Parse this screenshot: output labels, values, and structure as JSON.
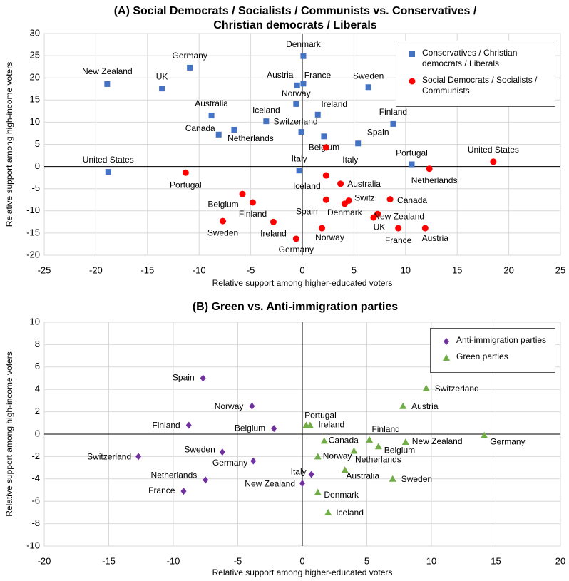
{
  "chart_data": [
    {
      "type": "scatter",
      "title": [
        "(A)  Social Democrats / Socialists / Communists vs. Conservatives /",
        "Christian democrats / Liberals"
      ],
      "x_label": "Relative support among higher-educated voters",
      "y_label": "Relative support among high-income voters",
      "xlim": [
        -25,
        25
      ],
      "xticks": [
        -25,
        -20,
        -15,
        -10,
        -5,
        0,
        5,
        10,
        15,
        20,
        25
      ],
      "ylim": [
        -20,
        30
      ],
      "yticks": [
        -20,
        -15,
        -10,
        -5,
        0,
        5,
        10,
        15,
        20,
        25,
        30
      ],
      "grid": true,
      "legend": "upper right",
      "series": [
        {
          "name": "Conservatives / Christian democrats / Liberals",
          "color": "#4472c4",
          "marker": "square",
          "labels": [
            "New Zealand",
            "UK",
            "Germany",
            "Australia",
            "Canada",
            "Netherlands",
            "Iceland",
            "Norway",
            "Austria",
            "Denmark",
            "France",
            "Switzerland",
            "Ireland",
            "Belgium",
            "Spain",
            "Sweden",
            "Finland",
            "Portugal",
            "Italy",
            "United States"
          ],
          "x": [
            -18.9,
            -13.6,
            -10.9,
            -8.8,
            -8.1,
            -6.6,
            -3.5,
            -0.6,
            -0.5,
            0.1,
            0.1,
            -0.1,
            1.5,
            2.1,
            5.4,
            6.4,
            8.8,
            10.6,
            -0.3,
            -18.8
          ],
          "values": [
            18.6,
            17.6,
            22.3,
            11.5,
            7.2,
            8.3,
            10.2,
            14.1,
            18.3,
            24.9,
            18.7,
            7.8,
            11.7,
            6.8,
            5.2,
            17.9,
            9.6,
            0.5,
            -0.9,
            -1.2
          ]
        },
        {
          "name": "Social Democrats / Socialists / Communists",
          "color": "#ff0000",
          "marker": "circle",
          "labels": [
            "Portugal",
            "Belgium",
            "Finland",
            "Sweden",
            "Ireland",
            "Germany",
            "Norway",
            "Italy",
            "Iceland",
            "Spain",
            "Australia",
            "Switz.",
            "Denmark",
            "Canada",
            "New Zealand",
            "UK",
            "France",
            "Austria",
            "Netherlands",
            "United States"
          ],
          "x": [
            -11.3,
            -5.8,
            -4.8,
            -7.7,
            -2.8,
            -0.6,
            1.9,
            2.3,
            2.3,
            2.3,
            3.7,
            4.5,
            4.1,
            8.5,
            7.3,
            6.9,
            9.3,
            11.9,
            12.3,
            18.5
          ],
          "values": [
            -1.4,
            -6.2,
            -8.1,
            -12.3,
            -12.5,
            -16.3,
            -13.9,
            4.3,
            -2.0,
            -7.5,
            -3.9,
            -7.7,
            -8.4,
            -7.4,
            -10.7,
            -11.5,
            -13.9,
            -13.9,
            -0.5,
            1.1
          ]
        }
      ]
    },
    {
      "type": "scatter",
      "title": [
        "(B)  Green vs. Anti-immigration parties"
      ],
      "x_label": "Relative support among higher-educated voters",
      "y_label": "Relative support among high-income voters",
      "xlim": [
        -20,
        20
      ],
      "xticks": [
        -20,
        -15,
        -10,
        -5,
        0,
        5,
        10,
        15,
        20
      ],
      "ylim": [
        -10,
        10
      ],
      "yticks": [
        -10,
        -8,
        -6,
        -4,
        -2,
        0,
        2,
        4,
        6,
        8,
        10
      ],
      "grid": true,
      "legend": "upper right",
      "series": [
        {
          "name": "Anti-immigration parties",
          "color": "#7030a0",
          "marker": "diamond",
          "labels": [
            "Spain",
            "Norway",
            "Finland",
            "Belgium",
            "Switzerland",
            "Sweden",
            "Germany",
            "Netherlands",
            "France",
            "Italy",
            "New Zealand"
          ],
          "x": [
            -7.7,
            -3.9,
            -8.8,
            -2.2,
            -12.7,
            -6.2,
            -3.8,
            -7.5,
            -9.2,
            0.7,
            0.0
          ],
          "values": [
            5.0,
            2.5,
            0.8,
            0.5,
            -2.0,
            -1.6,
            -2.4,
            -4.1,
            -5.1,
            -3.6,
            -4.4
          ]
        },
        {
          "name": "Green parties",
          "color": "#70ad47",
          "marker": "triangle",
          "labels": [
            "Switzerland",
            "Austria",
            "Portugal",
            "Ireland",
            "Finland",
            "Germany",
            "New Zealand",
            "Canada",
            "Belgium",
            "Netherlands",
            "Norway",
            "Australia",
            "Sweden",
            "Denmark",
            "Iceland"
          ],
          "x": [
            9.6,
            7.8,
            0.3,
            0.6,
            5.2,
            14.1,
            8.0,
            1.7,
            5.9,
            4.0,
            1.2,
            3.3,
            7.0,
            1.2,
            2.0
          ],
          "values": [
            4.1,
            2.5,
            0.8,
            0.8,
            -0.5,
            -0.1,
            -0.7,
            -0.6,
            -1.1,
            -1.5,
            -2.0,
            -3.2,
            -4.0,
            -5.2,
            -7.0
          ]
        }
      ]
    }
  ]
}
